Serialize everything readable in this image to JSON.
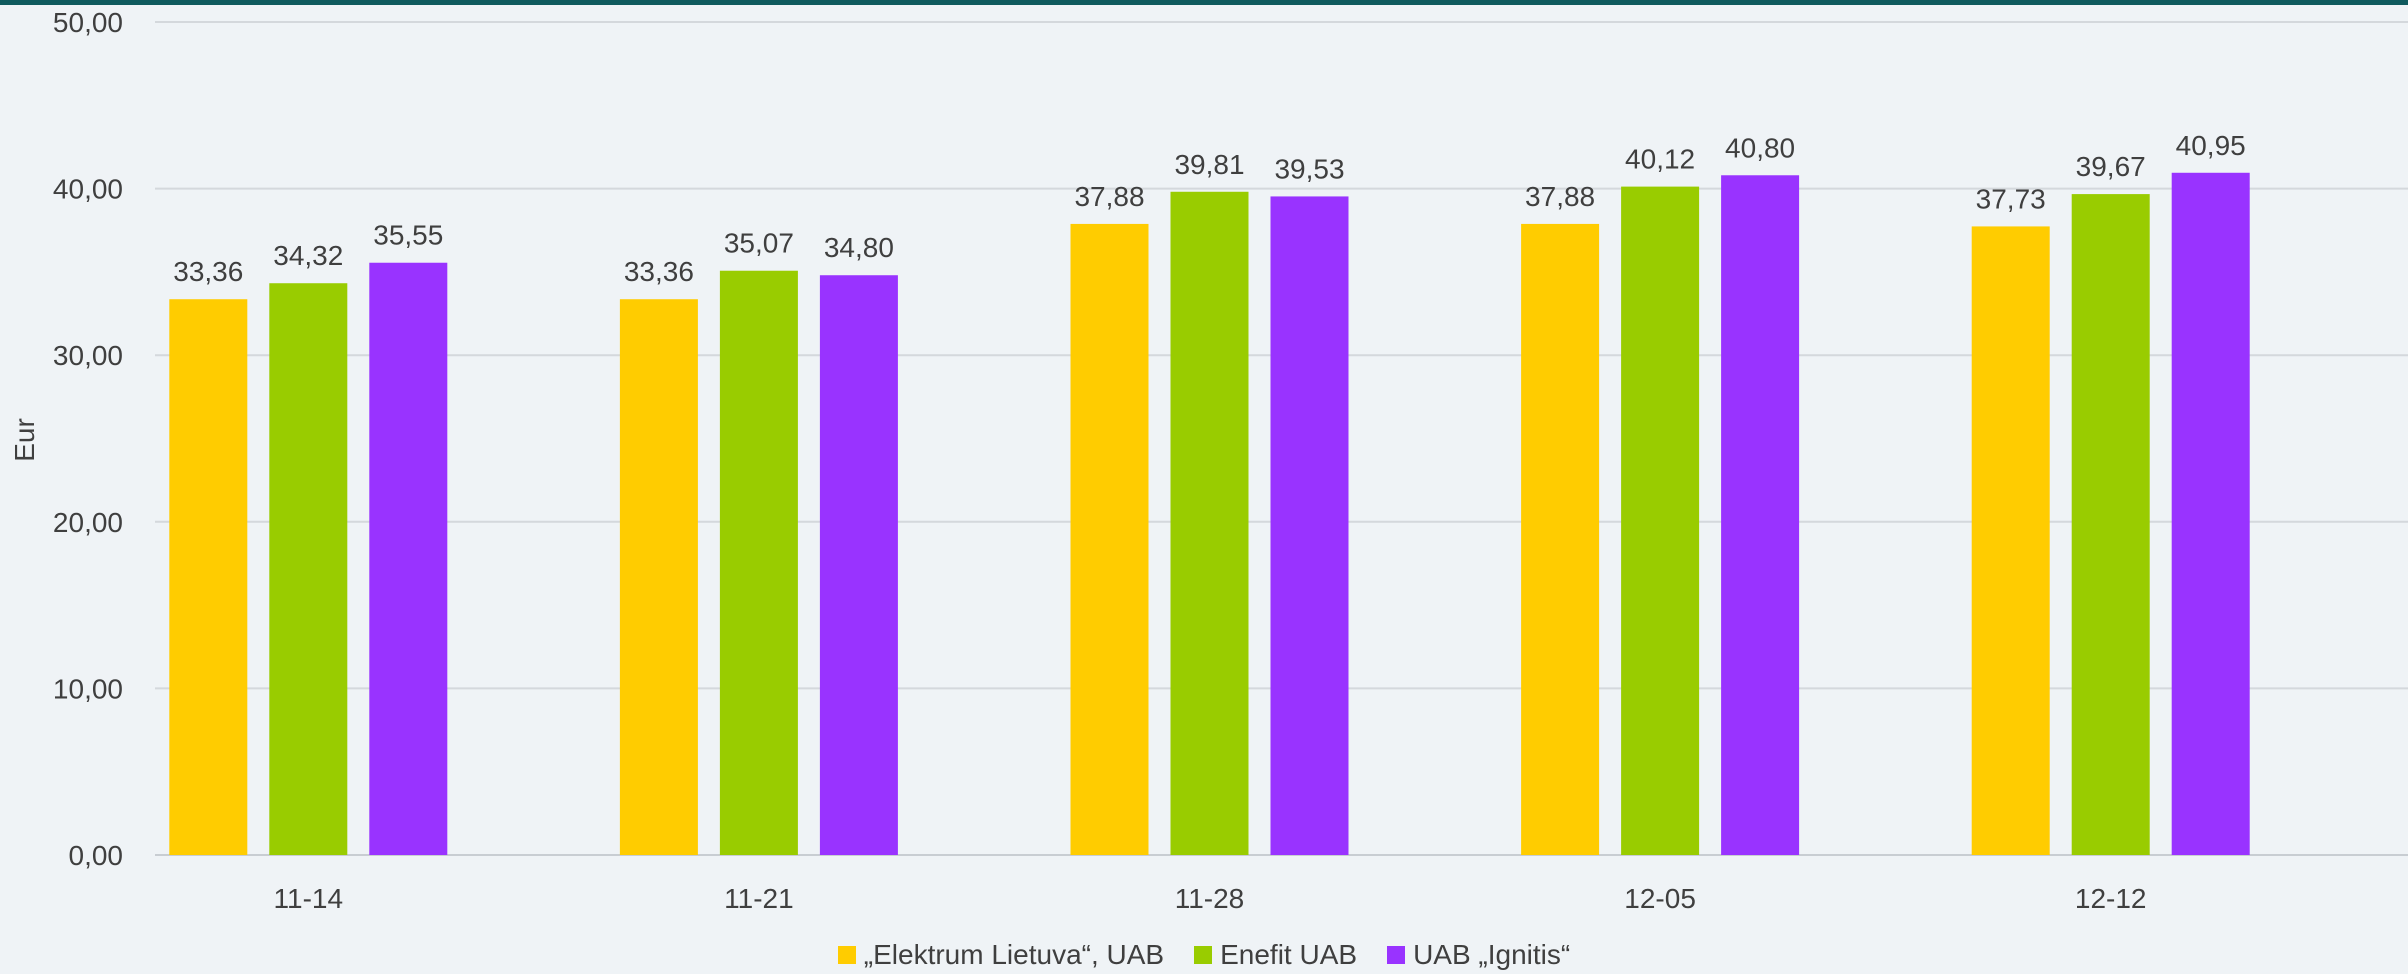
{
  "chart_data": {
    "type": "bar",
    "categories": [
      "11-14",
      "11-21",
      "11-28",
      "12-05",
      "12-12"
    ],
    "series": [
      {
        "name": "„Elektrum Lietuva“, UAB",
        "color": "#ffcc00",
        "values": [
          33.36,
          33.36,
          37.88,
          37.88,
          37.73
        ],
        "labels": [
          "33,36",
          "33,36",
          "37,88",
          "37,88",
          "37,73"
        ]
      },
      {
        "name": "Enefit UAB",
        "color": "#99cc00",
        "values": [
          34.32,
          35.07,
          39.81,
          40.12,
          39.67
        ],
        "labels": [
          "34,32",
          "35,07",
          "39,81",
          "40,12",
          "39,67"
        ]
      },
      {
        "name": "UAB „Ignitis“",
        "color": "#9933ff",
        "values": [
          35.55,
          34.8,
          39.53,
          40.8,
          40.95
        ],
        "labels": [
          "35,55",
          "34,80",
          "39,53",
          "40,80",
          "40,95"
        ]
      }
    ],
    "title": "",
    "xlabel": "",
    "ylabel": "Eur",
    "ylim": [
      0,
      50
    ],
    "yticks": [
      0,
      10,
      20,
      30,
      40,
      50
    ],
    "ytick_labels": [
      "0,00",
      "10,00",
      "20,00",
      "30,00",
      "40,00",
      "50,00"
    ],
    "grid": true,
    "legend_position": "bottom"
  }
}
